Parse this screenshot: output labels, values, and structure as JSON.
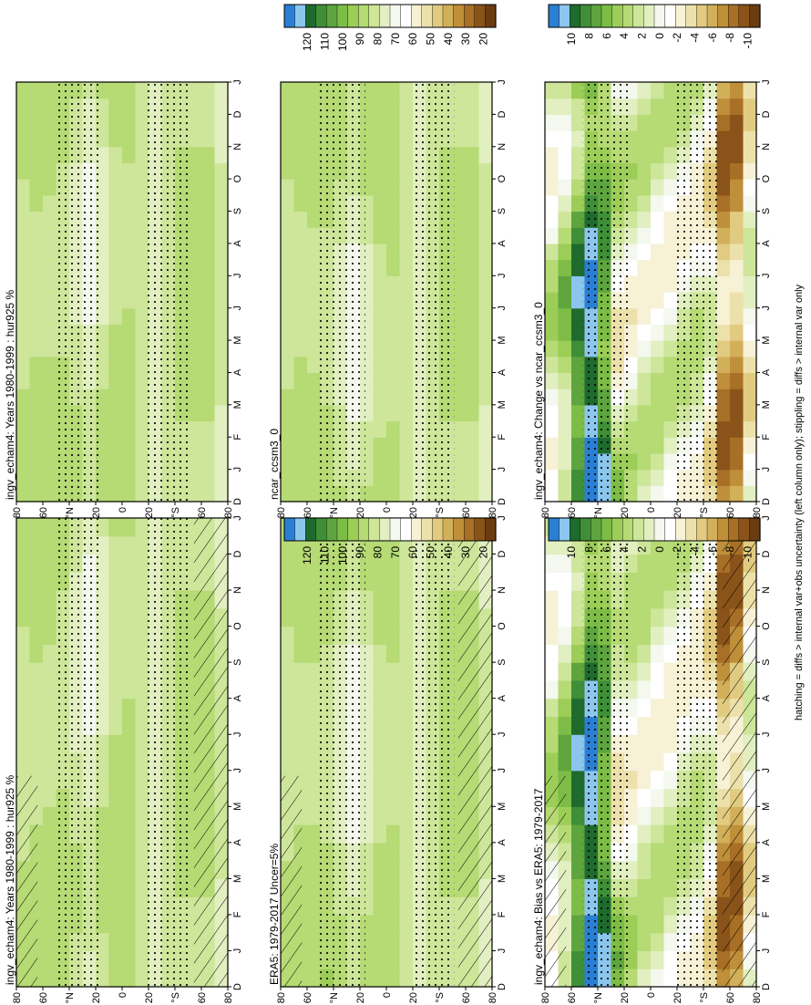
{
  "colors": {
    "abs_scale": [
      "#2a7fd4",
      "#8cc6ee",
      "#1f6b2e",
      "#3f8f38",
      "#5ea53f",
      "#7dbd47",
      "#9ccd57",
      "#b6da74",
      "#cde69a",
      "#e1efc1",
      "#f4f8ee",
      "#ffffff",
      "#f7f1d6",
      "#ede1ab",
      "#e1cb80",
      "#d2b05a",
      "#bf8f3a",
      "#a87026",
      "#8a5319",
      "#6b3c12"
    ],
    "diff_scale": [
      "#2a7fd4",
      "#8cc6ee",
      "#1f6b2e",
      "#3f8f38",
      "#5ea53f",
      "#7dbd47",
      "#9ccd57",
      "#b6da74",
      "#cde69a",
      "#e1efc1",
      "#f4f8ee",
      "#ffffff",
      "#f7f1d6",
      "#ede1ab",
      "#e1cb80",
      "#d2b05a",
      "#bf8f3a",
      "#a87026",
      "#8a5319",
      "#6b3c12"
    ]
  },
  "footer": "hatching = diffs > internal var+obs uncertainty (left column only); stippling = diffs > internal var only",
  "month_ticks": [
    "D",
    "J",
    "F",
    "M",
    "A",
    "M",
    "J",
    "J",
    "A",
    "S",
    "O",
    "N",
    "D",
    "J"
  ],
  "lat_ticks": [
    "80",
    "60",
    "°N",
    "20",
    "0",
    "20",
    "°S",
    "60",
    "80"
  ],
  "abs_ticks": [
    "120",
    "110",
    "100",
    "90",
    "80",
    "70",
    "60",
    "50",
    "40",
    "30",
    "20"
  ],
  "diff_ticks": [
    "10",
    "8",
    "6",
    "4",
    "2",
    "0",
    "-2",
    "-4",
    "-6",
    "-8",
    "-10"
  ],
  "panels": [
    {
      "title": "ingv_echam4: Years 1980-1999 : hur925 %",
      "scale": "abs"
    },
    {
      "title": "ingv_echam4: Years 1980-1999 : hur925 %",
      "scale": "abs"
    },
    {
      "title": "ERA5: 1979-2017 Uncer=5%",
      "scale": "abs"
    },
    {
      "title": "ncar_ccsm3_0",
      "scale": "abs"
    },
    {
      "title": "ingv_echam4: Bias vs ERA5: 1979-2017",
      "scale": "diff"
    },
    {
      "title": "ingv_echam4: Change vs ncar_ccsm3_0",
      "scale": "diff"
    }
  ],
  "chart_data": [
    {
      "type": "heatmap",
      "title": "ingv_echam4: Years 1980-1999 : hur925 %",
      "x_axis": "month (D-J)",
      "y_axis": "latitude (80°N to 80°S)",
      "colorbar_ticks": [
        "120",
        "110",
        "100",
        "90",
        "80",
        "70",
        "60",
        "50",
        "40",
        "30",
        "20"
      ],
      "hatching": true,
      "stippling": true
    },
    {
      "type": "heatmap",
      "title": "ingv_echam4: Years 1980-1999 : hur925 %",
      "x_axis": "month (D-J)",
      "y_axis": "latitude (80°N to 80°S)",
      "colorbar_ticks": [
        "120",
        "110",
        "100",
        "90",
        "80",
        "70",
        "60",
        "50",
        "40",
        "30",
        "20"
      ],
      "hatching": false,
      "stippling": true
    },
    {
      "type": "heatmap",
      "title": "ERA5: 1979-2017 Uncer=5%",
      "x_axis": "month (D-J)",
      "y_axis": "latitude (80°N to 80°S)",
      "colorbar_ticks": [
        "120",
        "110",
        "100",
        "90",
        "80",
        "70",
        "60",
        "50",
        "40",
        "30",
        "20"
      ],
      "hatching": true,
      "stippling": true
    },
    {
      "type": "heatmap",
      "title": "ncar_ccsm3_0",
      "x_axis": "month (D-J)",
      "y_axis": "latitude (80°N to 80°S)",
      "colorbar_ticks": [
        "120",
        "110",
        "100",
        "90",
        "80",
        "70",
        "60",
        "50",
        "40",
        "30",
        "20"
      ],
      "hatching": false,
      "stippling": true
    },
    {
      "type": "heatmap",
      "title": "ingv_echam4: Bias vs ERA5: 1979-2017",
      "x_axis": "month (D-J)",
      "y_axis": "latitude (80°N to 80°S)",
      "colorbar_ticks": [
        "10",
        "8",
        "6",
        "4",
        "2",
        "0",
        "-2",
        "-4",
        "-6",
        "-8",
        "-10"
      ],
      "hatching": true,
      "stippling": true
    },
    {
      "type": "heatmap",
      "title": "ingv_echam4: Change vs ncar_ccsm3_0",
      "x_axis": "month (D-J)",
      "y_axis": "latitude (80°N to 80°S)",
      "colorbar_ticks": [
        "10",
        "8",
        "6",
        "4",
        "2",
        "0",
        "-2",
        "-4",
        "-6",
        "-8",
        "-10"
      ],
      "hatching": false,
      "stippling": true
    }
  ]
}
